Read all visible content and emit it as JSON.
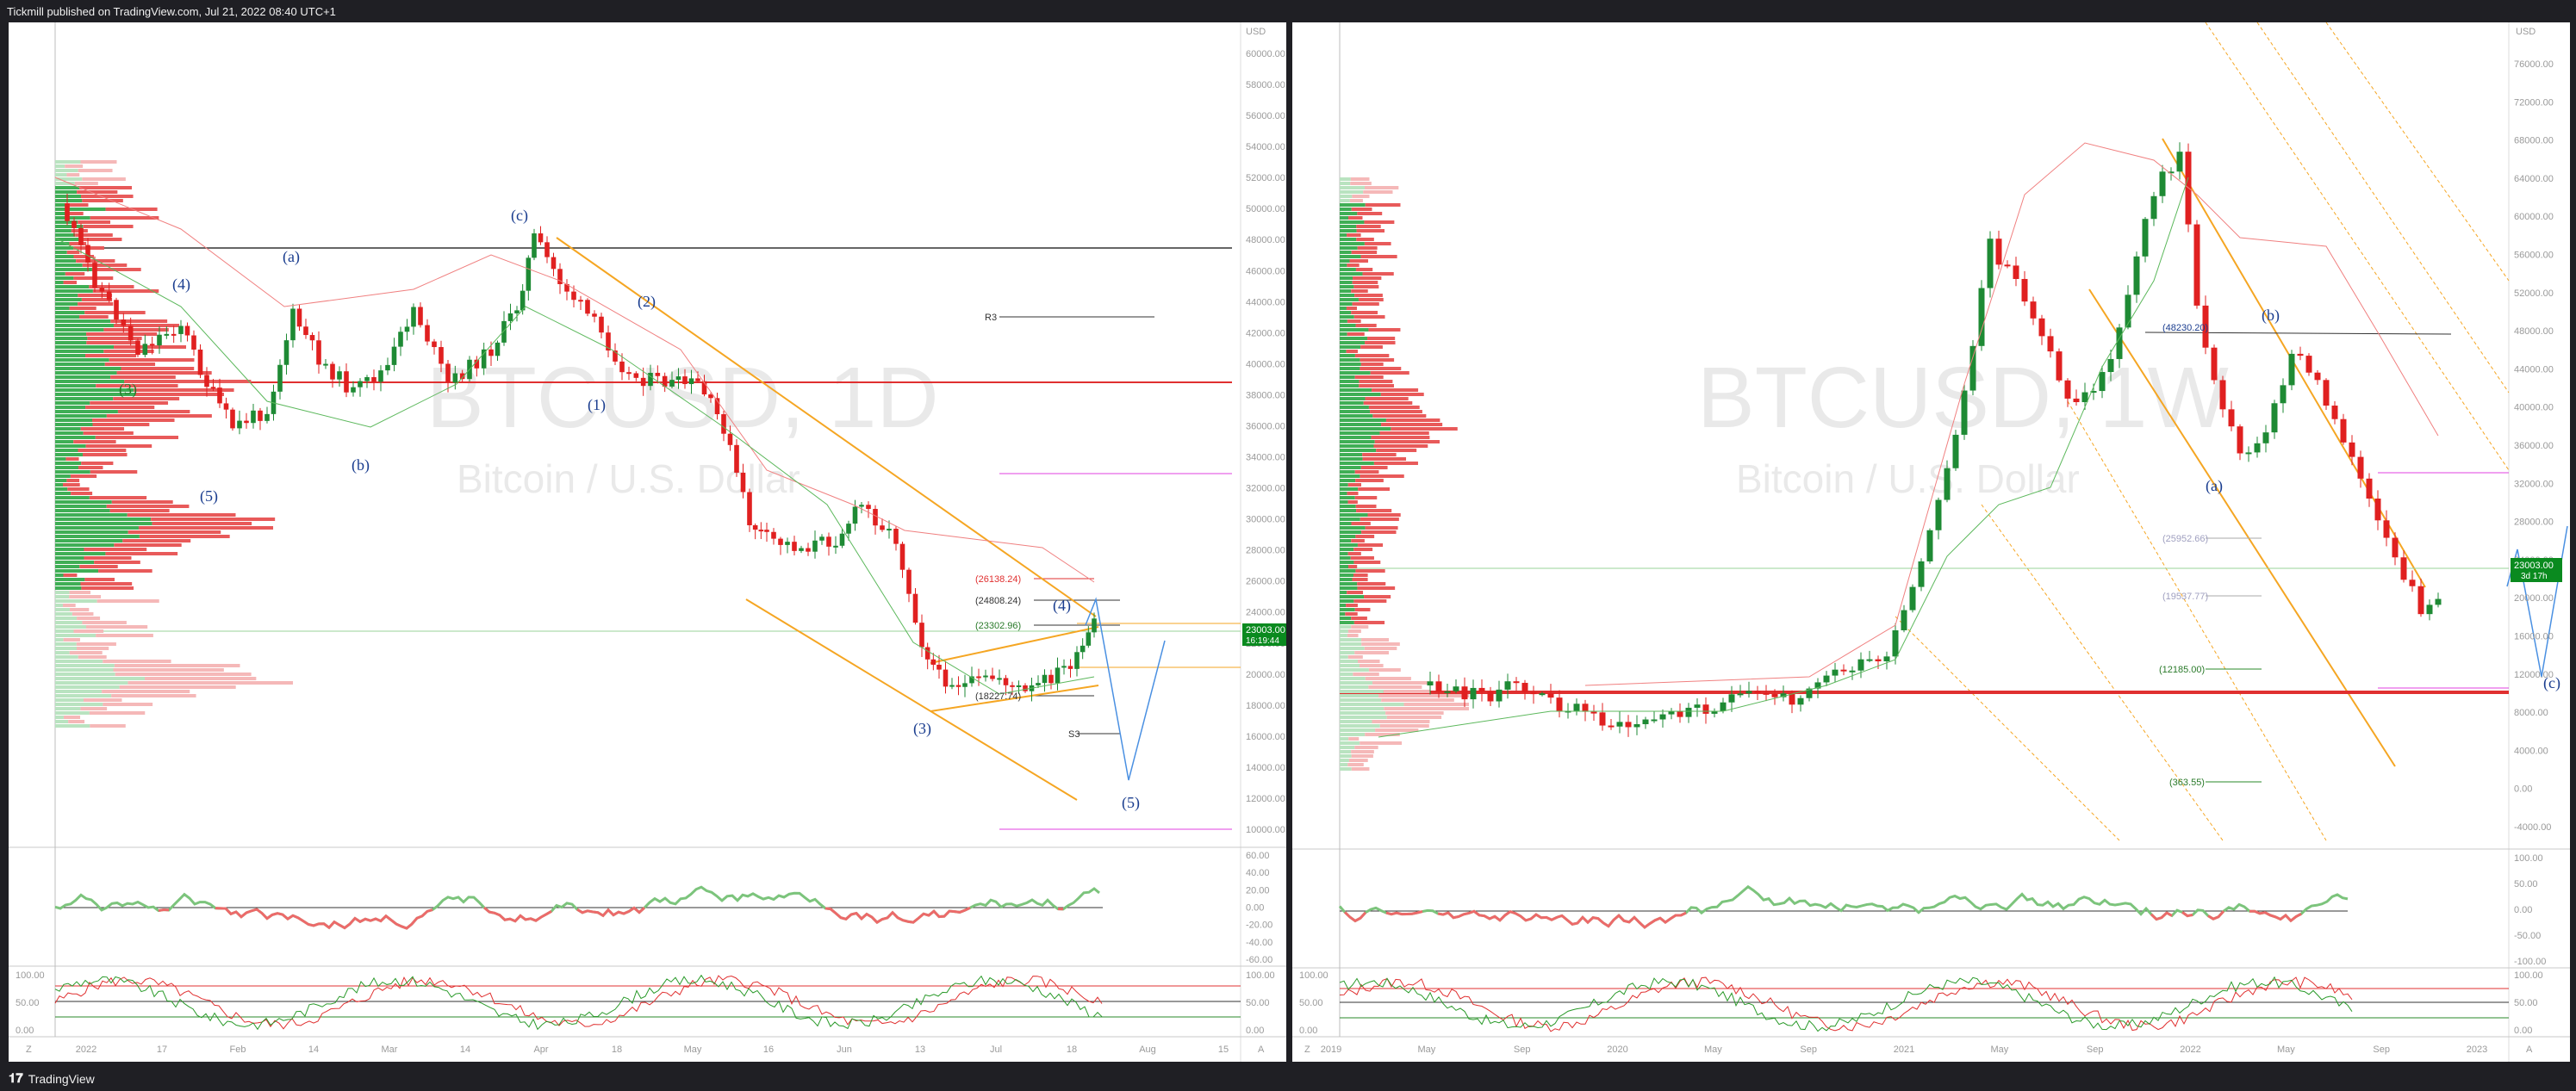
{
  "header": {
    "publish_line": "Tickmill published on TradingView.com, Jul 21, 2022 08:40 UTC+1"
  },
  "footer": {
    "brand": "TradingView"
  },
  "colors": {
    "bull": "#26a34a",
    "bear": "#e53935",
    "channel": "#f5a623",
    "projection": "#4a90e2",
    "price_tag": "#0a8a1f"
  },
  "left_chart": {
    "symbol": "BTCUSD, 1D",
    "description": "Bitcoin / U.S. Dollar",
    "currency": "USD",
    "price_axis": [
      "60000.00",
      "58000.00",
      "56000.00",
      "54000.00",
      "52000.00",
      "50000.00",
      "48000.00",
      "46000.00",
      "44000.00",
      "42000.00",
      "40000.00",
      "38000.00",
      "36000.00",
      "34000.00",
      "32000.00",
      "30000.00",
      "28000.00",
      "26000.00",
      "24000.00",
      "22000.00",
      "20000.00",
      "18000.00",
      "16000.00",
      "14000.00",
      "12000.00",
      "10000.00"
    ],
    "time_axis": [
      "2022",
      "17",
      "Feb",
      "14",
      "Mar",
      "14",
      "Apr",
      "18",
      "May",
      "16",
      "Jun",
      "13",
      "Jul",
      "18",
      "Aug",
      "15"
    ],
    "last_price": "23003.00",
    "countdown": "16:19:44",
    "waves": [
      "(4)",
      "(a)",
      "(c)",
      "(2)",
      "(1)",
      "(3)",
      "(5)",
      "(b)",
      "(3)",
      "(4)",
      "(5)"
    ],
    "levels": [
      "R3",
      "(26138.24)",
      "(24808.24)",
      "(23302.96)",
      "(18227.74)",
      "S3"
    ],
    "rsi_axis": [
      "60.00",
      "40.00",
      "20.00",
      "0.00",
      "-20.00",
      "-40.00",
      "-60.00"
    ],
    "stoch_axis": [
      "100.00",
      "50.00",
      "0.00"
    ],
    "corner_left": "Z",
    "corner_right": "A"
  },
  "right_chart": {
    "symbol": "BTCUSD, 1W",
    "description": "Bitcoin / U.S. Dollar",
    "currency": "USD",
    "price_axis": [
      "76000.00",
      "72000.00",
      "68000.00",
      "64000.00",
      "60000.00",
      "56000.00",
      "52000.00",
      "48000.00",
      "44000.00",
      "40000.00",
      "36000.00",
      "32000.00",
      "28000.00",
      "24000.00",
      "20000.00",
      "16000.00",
      "12000.00",
      "8000.00",
      "4000.00",
      "0.00",
      "-4000.00"
    ],
    "time_axis": [
      "2019",
      "May",
      "Sep",
      "2020",
      "May",
      "Sep",
      "2021",
      "May",
      "Sep",
      "2022",
      "May",
      "Sep",
      "2023"
    ],
    "last_price": "23003.00",
    "countdown": "3d 17h",
    "waves": [
      "(b)",
      "(a)",
      "(c)"
    ],
    "levels": [
      "(48230.20)",
      "(25952.66)",
      "(19537.77)",
      "(12185.00)",
      "(363.55)"
    ],
    "rsi_axis": [
      "100.00",
      "50.00",
      "0.00",
      "-50.00",
      "-100.00"
    ],
    "stoch_axis": [
      "100.00",
      "50.00",
      "0.00"
    ],
    "corner_left": "Z",
    "corner_right": "A"
  }
}
